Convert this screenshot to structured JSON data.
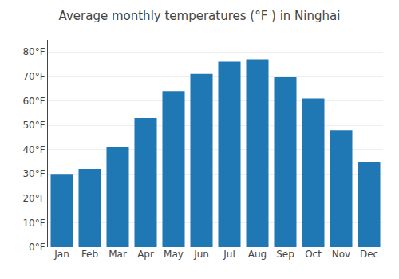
{
  "chart_data": {
    "type": "bar",
    "title": "Average monthly temperatures (°F ) in Ninghai",
    "categories": [
      "Jan",
      "Feb",
      "Mar",
      "Apr",
      "May",
      "Jun",
      "Jul",
      "Aug",
      "Sep",
      "Oct",
      "Nov",
      "Dec"
    ],
    "values": [
      30,
      32,
      41,
      53,
      64,
      71,
      76,
      77,
      70,
      61,
      48,
      35
    ],
    "ylim": [
      0,
      85
    ],
    "yticks": [
      {
        "value": 0,
        "label": "0°F"
      },
      {
        "value": 10,
        "label": "10°F"
      },
      {
        "value": 20,
        "label": "20°F"
      },
      {
        "value": 30,
        "label": "30°F"
      },
      {
        "value": 40,
        "label": "40°F"
      },
      {
        "value": 50,
        "label": "50°F"
      },
      {
        "value": 60,
        "label": "60°F"
      },
      {
        "value": 70,
        "label": "70°F"
      },
      {
        "value": 80,
        "label": "80°F"
      }
    ],
    "grid": true
  }
}
